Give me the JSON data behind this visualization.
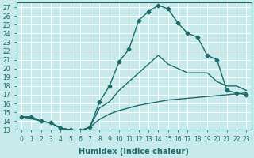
{
  "xlabel": "Humidex (Indice chaleur)",
  "background_color": "#c8eaea",
  "line_color": "#1a6b6b",
  "grid_color": "#ffffff",
  "xlim": [
    -0.5,
    23.5
  ],
  "ylim": [
    13,
    27.5
  ],
  "xticks": [
    0,
    1,
    2,
    3,
    4,
    5,
    6,
    7,
    8,
    9,
    10,
    11,
    12,
    13,
    14,
    15,
    16,
    17,
    18,
    19,
    20,
    21,
    22,
    23
  ],
  "yticks": [
    13,
    14,
    15,
    16,
    17,
    18,
    19,
    20,
    21,
    22,
    23,
    24,
    25,
    26,
    27
  ],
  "line1_x": [
    0,
    1,
    2,
    3,
    4,
    5,
    6,
    7,
    8,
    9,
    10,
    11,
    12,
    13,
    14,
    15,
    16,
    17,
    18,
    19,
    20,
    21,
    22,
    23
  ],
  "line1_y": [
    14.5,
    14.5,
    14.0,
    13.8,
    13.2,
    13.0,
    12.9,
    13.3,
    16.2,
    18.0,
    20.8,
    22.2,
    25.5,
    26.5,
    27.2,
    26.8,
    25.2,
    24.0,
    23.6,
    21.5,
    21.0,
    17.5,
    17.2,
    17.0
  ],
  "line2_x": [
    0,
    1,
    2,
    3,
    4,
    5,
    6,
    7,
    8,
    9,
    10,
    11,
    12,
    13,
    14,
    15,
    16,
    17,
    18,
    19,
    20,
    21,
    22,
    23
  ],
  "line2_y": [
    14.5,
    14.3,
    14.0,
    13.8,
    13.2,
    13.0,
    12.9,
    13.3,
    15.5,
    16.2,
    17.5,
    18.5,
    19.5,
    20.5,
    21.5,
    20.5,
    20.0,
    19.5,
    19.5,
    19.5,
    18.5,
    18.0,
    18.0,
    17.5
  ],
  "line3_x": [
    0,
    1,
    2,
    3,
    4,
    5,
    6,
    7,
    8,
    9,
    10,
    11,
    12,
    13,
    14,
    15,
    16,
    17,
    18,
    19,
    20,
    21,
    22,
    23
  ],
  "line3_y": [
    14.5,
    14.3,
    14.0,
    13.8,
    13.2,
    13.0,
    12.9,
    13.3,
    14.2,
    14.8,
    15.2,
    15.5,
    15.8,
    16.0,
    16.2,
    16.4,
    16.5,
    16.6,
    16.7,
    16.8,
    16.9,
    17.0,
    17.1,
    17.2
  ],
  "marker": "D",
  "markersize": 2.5,
  "linewidth": 1.0,
  "figsize": [
    3.2,
    2.0
  ],
  "dpi": 100,
  "xlabel_fontsize": 7,
  "tick_fontsize": 5.5
}
